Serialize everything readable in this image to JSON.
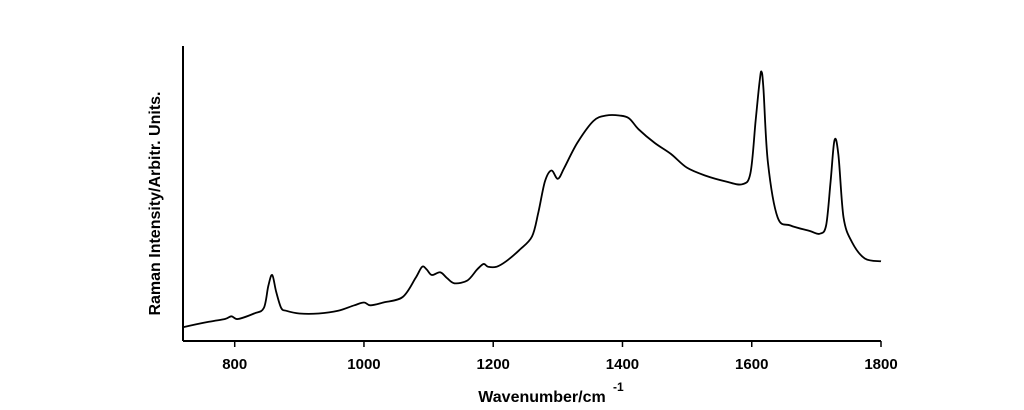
{
  "chart_data": {
    "type": "line",
    "title": "",
    "xlabel": "Wavenumber/cm",
    "xlabel_superscript": "-1",
    "ylabel": "Raman Intensity/Arbitr. Units.",
    "xlim": [
      720,
      1800
    ],
    "ylim": [
      0,
      100
    ],
    "x_ticks": [
      800,
      1000,
      1200,
      1400,
      1600,
      1800
    ],
    "y_ticks": [],
    "grid": false,
    "legend": "none",
    "line_color": "#000000",
    "series": [
      {
        "x": [
          720,
          760,
          785,
          795,
          805,
          830,
          845,
          852,
          858,
          864,
          872,
          880,
          900,
          930,
          960,
          985,
          1000,
          1010,
          1030,
          1060,
          1080,
          1090,
          1097,
          1105,
          1118,
          1128,
          1140,
          1160,
          1175,
          1185,
          1192,
          1205,
          1220,
          1240,
          1260,
          1270,
          1280,
          1290,
          1300,
          1310,
          1330,
          1355,
          1375,
          1395,
          1410,
          1425,
          1450,
          1475,
          1500,
          1530,
          1560,
          1585,
          1598,
          1606,
          1612,
          1615,
          1618,
          1625,
          1640,
          1660,
          1690,
          1705,
          1715,
          1722,
          1728,
          1734,
          1742,
          1755,
          1775,
          1800
        ],
        "values": [
          5,
          7,
          8,
          9,
          8,
          10,
          12,
          20,
          24,
          18,
          12,
          11,
          10,
          10,
          11,
          13,
          14,
          13,
          14,
          16,
          23,
          27,
          26,
          24,
          25,
          23,
          21,
          22,
          26,
          28,
          27,
          27,
          29,
          33,
          38,
          47,
          58,
          62,
          59,
          63,
          72,
          80,
          82,
          82,
          81,
          77,
          72,
          68,
          63,
          60,
          58,
          57,
          61,
          80,
          94,
          98,
          92,
          65,
          45,
          42,
          40,
          39,
          42,
          58,
          73,
          68,
          45,
          36,
          30,
          29
        ]
      }
    ]
  }
}
